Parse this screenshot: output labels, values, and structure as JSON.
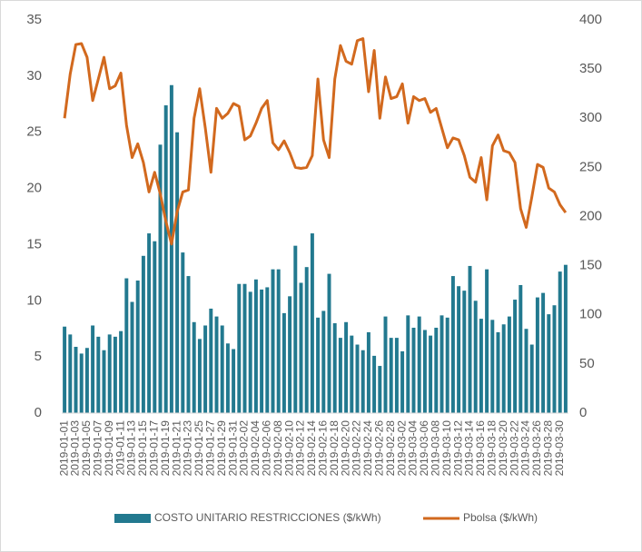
{
  "chart_data": {
    "type": "bar_line",
    "categories": [
      "2019-01-01",
      null,
      "2019-01-03",
      null,
      "2019-01-05",
      null,
      "2019-01-07",
      null,
      "2019-01-09",
      null,
      "2019-01-11",
      null,
      "2019-01-13",
      null,
      "2019-01-15",
      null,
      "2019-01-17",
      null,
      "2019-01-19",
      null,
      "2019-01-21",
      null,
      "2019-01-23",
      null,
      "2019-01-25",
      null,
      "2019-01-27",
      null,
      "2019-01-29",
      null,
      "2019-01-31",
      null,
      "2019-02-02",
      null,
      "2019-02-04",
      null,
      "2019-02-06",
      null,
      "2019-02-08",
      null,
      "2019-02-10",
      null,
      "2019-02-12",
      null,
      "2019-02-14",
      null,
      "2019-02-16",
      null,
      "2019-02-18",
      null,
      "2019-02-20",
      null,
      "2019-02-22",
      null,
      "2019-02-24",
      null,
      "2019-02-26",
      null,
      "2019-02-28",
      null,
      "2019-03-02",
      null,
      "2019-03-04",
      null,
      "2019-03-06",
      null,
      "2019-03-08",
      null,
      "2019-03-10",
      null,
      "2019-03-12",
      null,
      "2019-03-14",
      null,
      "2019-03-16",
      null,
      "2019-03-18",
      null,
      "2019-03-20",
      null,
      "2019-03-22",
      null,
      "2019-03-24",
      null,
      "2019-03-26",
      null,
      "2019-03-28",
      null,
      "2019-03-30",
      null
    ],
    "series": [
      {
        "name": "COSTO UNITARIO RESTRICCIONES ($/kWh)",
        "kind": "bar",
        "color": "#22798f",
        "values": [
          7.7,
          7.0,
          5.9,
          5.3,
          5.8,
          7.8,
          6.8,
          5.6,
          7.0,
          6.8,
          7.3,
          12.0,
          9.9,
          11.8,
          14.0,
          16.0,
          15.3,
          23.9,
          27.4,
          29.2,
          25.0,
          14.3,
          12.2,
          8.1,
          6.6,
          7.8,
          9.3,
          8.6,
          7.8,
          6.2,
          5.7,
          11.5,
          11.5,
          10.8,
          11.9,
          11.0,
          11.2,
          12.8,
          12.8,
          8.9,
          10.4,
          14.9,
          11.6,
          13.0,
          16.0,
          8.5,
          9.1,
          12.4,
          8.0,
          6.7,
          8.1,
          6.9,
          6.1,
          5.6,
          7.2,
          5.1,
          4.2,
          8.6,
          6.7,
          6.7,
          5.5,
          8.7,
          7.6,
          8.6,
          7.4,
          6.9,
          7.6,
          8.7,
          8.5,
          12.2,
          11.3,
          10.9,
          13.1,
          10.0,
          8.4,
          12.8,
          8.3,
          7.2,
          7.9,
          8.6,
          10.1,
          11.4,
          7.5,
          6.1,
          10.3,
          10.7,
          8.8,
          9.6,
          12.6,
          13.2
        ]
      },
      {
        "name": "Pbolsa ($/kWh)",
        "kind": "line",
        "axis": "y2",
        "color": "#d2691e",
        "values": [
          300,
          345,
          375,
          376,
          362,
          318,
          340,
          362,
          330,
          333,
          346,
          293,
          260,
          274,
          255,
          225,
          245,
          223,
          195,
          172,
          205,
          225,
          227,
          300,
          330,
          290,
          245,
          310,
          300,
          305,
          315,
          312,
          278,
          282,
          295,
          310,
          318,
          275,
          268,
          277,
          265,
          250,
          249,
          250,
          262,
          340,
          278,
          260,
          340,
          374,
          358,
          355,
          379,
          381,
          327,
          369,
          300,
          342,
          320,
          322,
          335,
          295,
          322,
          318,
          320,
          306,
          310,
          290,
          270,
          280,
          278,
          262,
          240,
          235,
          260,
          217,
          272,
          283,
          267,
          265,
          255,
          208,
          189,
          220,
          253,
          250,
          229,
          225,
          212,
          204
        ]
      }
    ],
    "ylim": [
      0,
      35
    ],
    "yticks": [
      0,
      5,
      10,
      15,
      20,
      25,
      30,
      35
    ],
    "y2lim": [
      0,
      400
    ],
    "y2ticks": [
      0,
      50,
      100,
      150,
      200,
      250,
      300,
      350,
      400
    ],
    "grid": false,
    "legend": "bottom"
  }
}
